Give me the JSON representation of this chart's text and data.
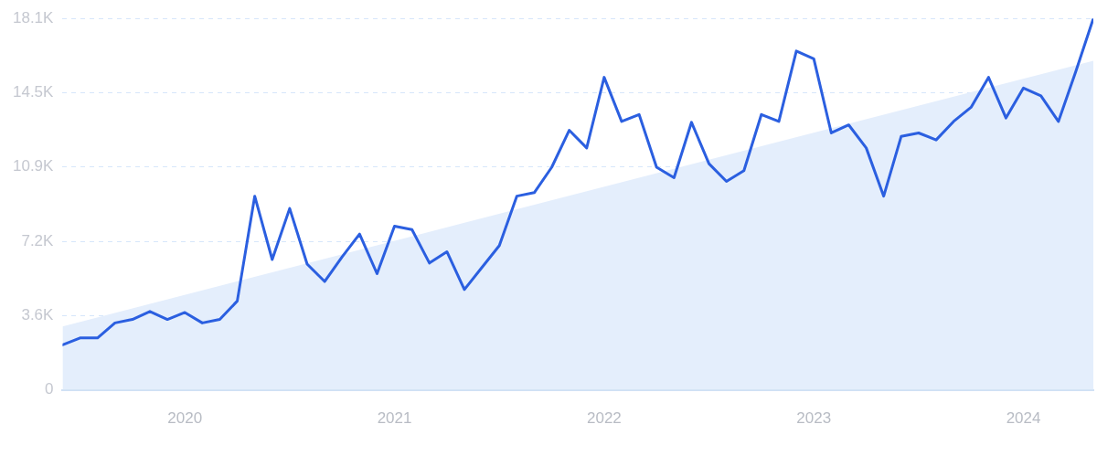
{
  "chart_data": {
    "type": "line",
    "x": [
      "2019-06",
      "2019-07",
      "2019-08",
      "2019-09",
      "2019-10",
      "2019-11",
      "2019-12",
      "2020-01",
      "2020-02",
      "2020-03",
      "2020-04",
      "2020-05",
      "2020-06",
      "2020-07",
      "2020-08",
      "2020-09",
      "2020-10",
      "2020-11",
      "2020-12",
      "2021-01",
      "2021-02",
      "2021-03",
      "2021-04",
      "2021-05",
      "2021-06",
      "2021-07",
      "2021-08",
      "2021-09",
      "2021-10",
      "2021-11",
      "2021-12",
      "2022-01",
      "2022-02",
      "2022-03",
      "2022-04",
      "2022-05",
      "2022-06",
      "2022-07",
      "2022-08",
      "2022-09",
      "2022-10",
      "2022-11",
      "2022-12",
      "2023-01",
      "2023-02",
      "2023-03",
      "2023-04",
      "2023-05",
      "2023-06",
      "2023-07",
      "2023-08",
      "2023-09",
      "2023-10",
      "2023-11",
      "2023-12",
      "2024-01",
      "2024-02",
      "2024-03",
      "2024-04",
      "2024-05"
    ],
    "series": [
      {
        "type": "area",
        "color": "#e4eefc",
        "x": [
          "2019-06",
          "2024-05"
        ],
        "values": [
          3090,
          16040
        ]
      },
      {
        "color": "#2b5fe0",
        "values": [
          2190,
          2530,
          2530,
          3260,
          3430,
          3820,
          3430,
          3770,
          3260,
          3430,
          4330,
          9440,
          6350,
          8840,
          6130,
          5280,
          6480,
          7590,
          5660,
          7980,
          7810,
          6180,
          6730,
          4890,
          5960,
          7030,
          9440,
          9610,
          10850,
          12650,
          11790,
          15230,
          13080,
          13420,
          10850,
          10340,
          13040,
          11020,
          10160,
          10680,
          13420,
          13080,
          16510,
          16130,
          12520,
          12910,
          11790,
          9440,
          12350,
          12520,
          12180,
          13080,
          13770,
          15230,
          13250,
          14710,
          14330,
          13080,
          15530,
          18100
        ]
      }
    ],
    "xlim": [
      "2019-06",
      "2024-05"
    ],
    "xticks": [
      "2020",
      "2021",
      "2022",
      "2023",
      "2024"
    ],
    "ylim": [
      0,
      18100
    ],
    "yticks": [
      0,
      {
        "value": 3620,
        "label": "3.6K"
      },
      {
        "value": 7240,
        "label": "7.2K"
      },
      {
        "value": 10860,
        "label": "10.9K"
      },
      {
        "value": 14480,
        "label": "14.5K"
      },
      {
        "value": 18100,
        "label": "18.1K"
      }
    ],
    "grid": "y",
    "marker": "none",
    "line_style": "solid"
  }
}
